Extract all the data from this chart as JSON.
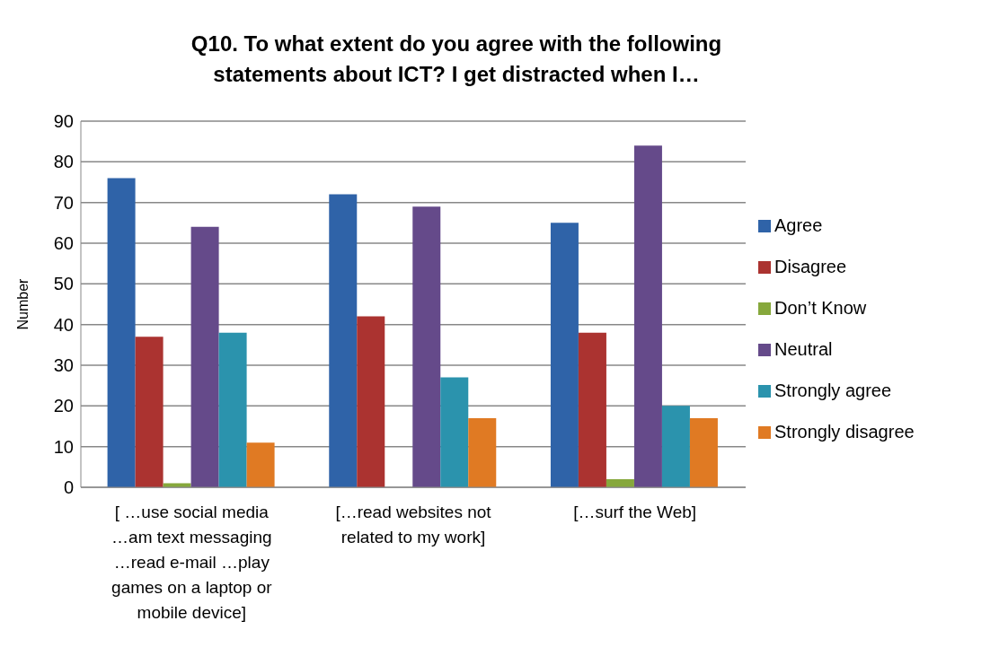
{
  "chart_data": {
    "type": "bar",
    "title": "Q10. To what extent do you agree with the following statements about ICT? I get distracted when I…",
    "ylabel": "Number",
    "categories": [
      "[ …use social media …am text messaging …read e-mail …play games on a laptop or mobile device]",
      "[…read websites not related to my work]",
      "[…surf the Web]"
    ],
    "series": [
      {
        "name": "Agree",
        "color": "#2f63a8",
        "values": [
          76,
          72,
          65
        ]
      },
      {
        "name": "Disagree",
        "color": "#ab3330",
        "values": [
          37,
          42,
          38
        ]
      },
      {
        "name": "Don’t Know",
        "color": "#86a83c",
        "values": [
          1,
          0,
          2
        ]
      },
      {
        "name": "Neutral",
        "color": "#654a8a",
        "values": [
          64,
          69,
          84
        ]
      },
      {
        "name": "Strongly agree",
        "color": "#2b93ad",
        "values": [
          38,
          27,
          20
        ]
      },
      {
        "name": "Strongly disagree",
        "color": "#e07a23",
        "values": [
          11,
          17,
          17
        ]
      }
    ],
    "ylim": [
      0,
      90
    ],
    "yticks": [
      0,
      10,
      20,
      30,
      40,
      50,
      60,
      70,
      80,
      90
    ],
    "grid": "y",
    "legend": "right"
  }
}
